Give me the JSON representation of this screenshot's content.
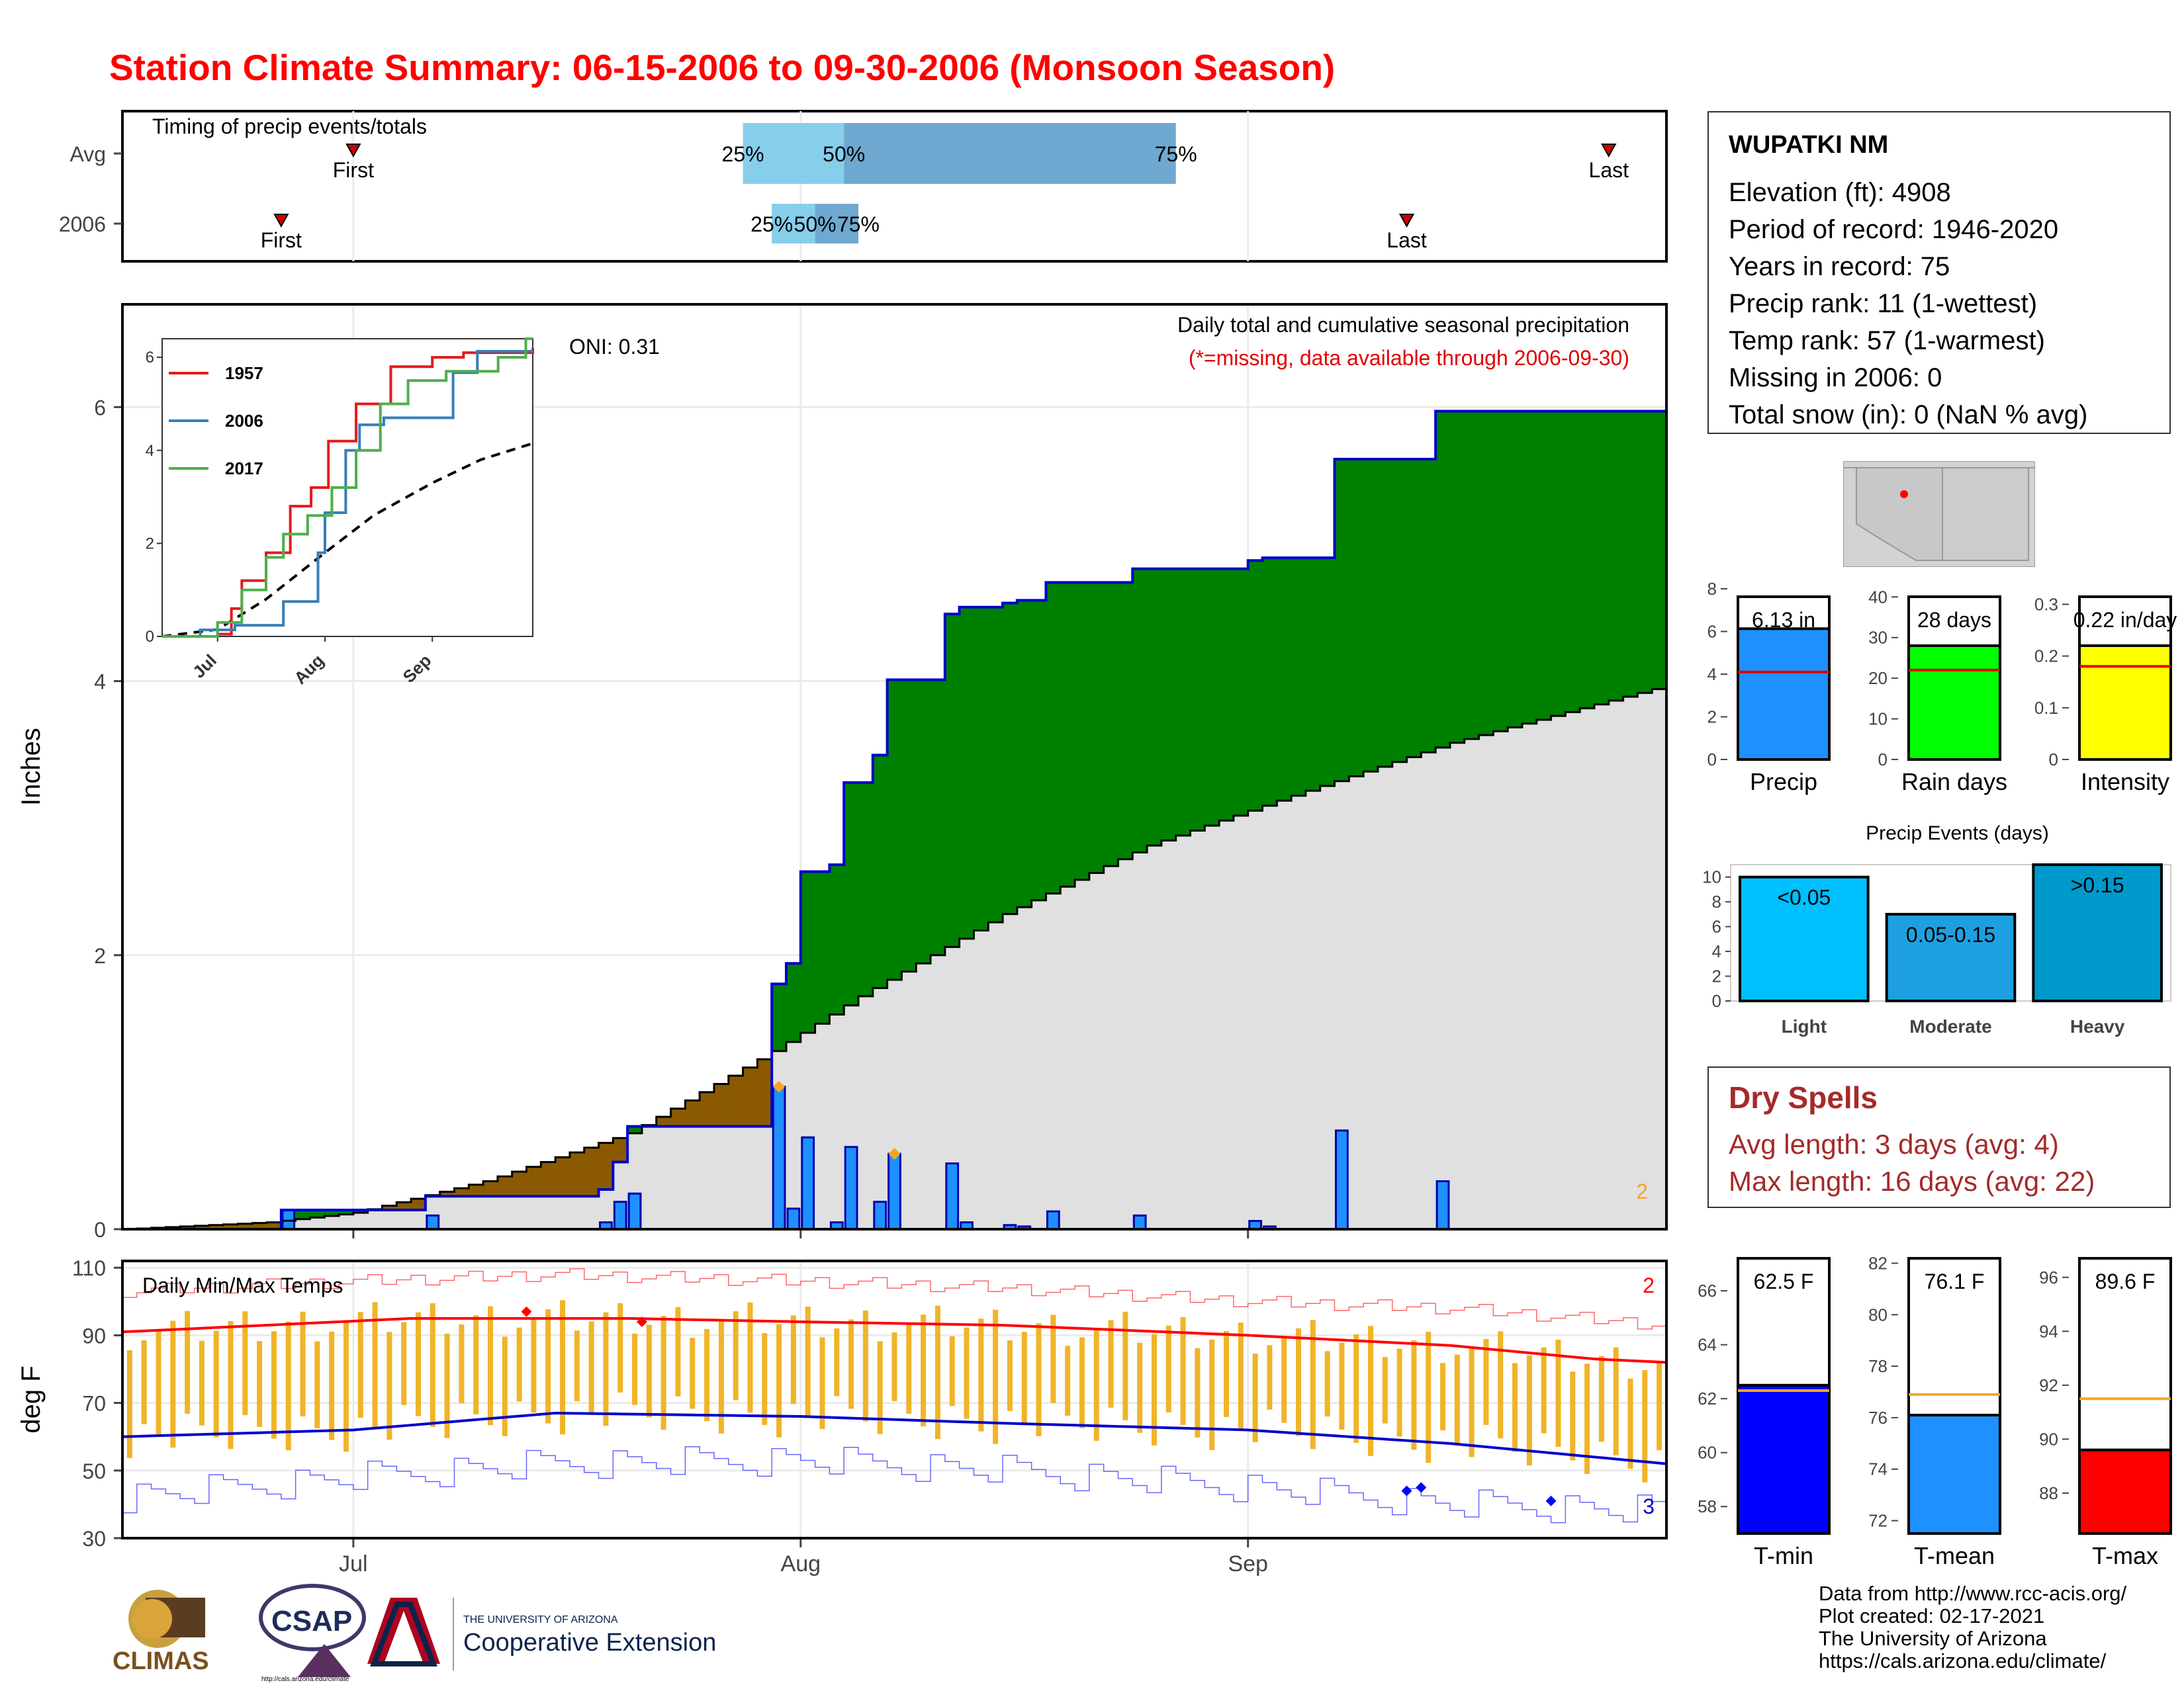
{
  "title": "Station Climate Summary: 06-15-2006 to 09-30-2006 (Monsoon Season)",
  "colors": {
    "title": "#ff0000",
    "green": "#008000",
    "brown": "#8b5a00",
    "bar_blue": "#1e90ff",
    "light_q": "#87ceeb",
    "dark_q": "#6fa8d0",
    "tmax": "#ff0000",
    "tmin": "#0000cc",
    "temp_bar": "#f0b428",
    "dry": "#a52a2a"
  },
  "timing": {
    "label": "Timing of precip events/totals",
    "rows": [
      {
        "name": "Avg",
        "first_label": "First",
        "last_label": "Last",
        "first_date": "2006-07-01",
        "last_date": "2006-09-26",
        "q25_date": "2006-07-28",
        "q50_date": "2006-08-04",
        "q75_date": "2006-08-27",
        "q25_label": "25%",
        "q50_label": "50%",
        "q75_label": "75%"
      },
      {
        "name": "2006",
        "first_label": "First",
        "last_label": "Last",
        "first_date": "2006-06-26",
        "last_date": "2006-09-12",
        "q25_date": "2006-07-30",
        "q50_date": "2006-08-02",
        "q75_date": "2006-08-05",
        "q25_label": "25%",
        "q50_label": "50%",
        "q75_label": "75%"
      }
    ]
  },
  "main_chart": {
    "ylabel": "Inches",
    "oni": "ONI: 0.31",
    "caption": "Daily total and cumulative seasonal precipitation",
    "caption2": "(*=missing, data available through 2006-09-30)",
    "corner_count": "2",
    "yticks": [
      0,
      2,
      4,
      6
    ],
    "ylim": [
      0,
      6.75
    ]
  },
  "chart_data": {
    "type": "area",
    "start_date": "2006-06-15",
    "end_date": "2006-09-30",
    "daily_precip": [
      {
        "date": "2006-06-26",
        "value": 0.14
      },
      {
        "date": "2006-07-06",
        "value": 0.1
      },
      {
        "date": "2006-07-18",
        "value": 0.05
      },
      {
        "date": "2006-07-19",
        "value": 0.2
      },
      {
        "date": "2006-07-20",
        "value": 0.26
      },
      {
        "date": "2006-07-30",
        "value": 1.04
      },
      {
        "date": "2006-07-31",
        "value": 0.15
      },
      {
        "date": "2006-08-01",
        "value": 0.67
      },
      {
        "date": "2006-08-03",
        "value": 0.05
      },
      {
        "date": "2006-08-04",
        "value": 0.6
      },
      {
        "date": "2006-08-06",
        "value": 0.2
      },
      {
        "date": "2006-08-07",
        "value": 0.55
      },
      {
        "date": "2006-08-11",
        "value": 0.48
      },
      {
        "date": "2006-08-12",
        "value": 0.05
      },
      {
        "date": "2006-08-15",
        "value": 0.03
      },
      {
        "date": "2006-08-16",
        "value": 0.02
      },
      {
        "date": "2006-08-18",
        "value": 0.13
      },
      {
        "date": "2006-08-24",
        "value": 0.1
      },
      {
        "date": "2006-09-01",
        "value": 0.06
      },
      {
        "date": "2006-09-02",
        "value": 0.02
      },
      {
        "date": "2006-09-07",
        "value": 0.72
      },
      {
        "date": "2006-09-14",
        "value": 0.35
      }
    ],
    "average_cumulative": [
      {
        "date": "2006-06-15",
        "value": 0
      },
      {
        "date": "2006-06-25",
        "value": 0.05
      },
      {
        "date": "2006-07-01",
        "value": 0.12
      },
      {
        "date": "2006-07-10",
        "value": 0.35
      },
      {
        "date": "2006-07-20",
        "value": 0.7
      },
      {
        "date": "2006-07-30",
        "value": 1.3
      },
      {
        "date": "2006-08-05",
        "value": 1.7
      },
      {
        "date": "2006-08-15",
        "value": 2.3
      },
      {
        "date": "2006-08-25",
        "value": 2.8
      },
      {
        "date": "2006-09-05",
        "value": 3.2
      },
      {
        "date": "2006-09-15",
        "value": 3.55
      },
      {
        "date": "2006-09-30",
        "value": 3.97
      }
    ],
    "missing_markers": [
      {
        "date": "2006-07-30",
        "value": 1.04
      },
      {
        "date": "2006-08-07",
        "value": 0.55
      }
    ],
    "inset": {
      "series": [
        {
          "name": "1957",
          "color": "#e41a1c",
          "points": [
            [
              "2006-06-15",
              0
            ],
            [
              "2006-07-01",
              0.05
            ],
            [
              "2006-07-05",
              0.6
            ],
            [
              "2006-07-08",
              1.2
            ],
            [
              "2006-07-15",
              1.8
            ],
            [
              "2006-07-22",
              2.8
            ],
            [
              "2006-07-28",
              3.2
            ],
            [
              "2006-08-02",
              4.2
            ],
            [
              "2006-08-10",
              5.0
            ],
            [
              "2006-08-20",
              5.8
            ],
            [
              "2006-09-01",
              6.0
            ],
            [
              "2006-09-10",
              6.1
            ],
            [
              "2006-09-30",
              6.2
            ]
          ]
        },
        {
          "name": "2006",
          "color": "#377eb8",
          "points": [
            [
              "2006-06-15",
              0
            ],
            [
              "2006-06-26",
              0.14
            ],
            [
              "2006-07-06",
              0.24
            ],
            [
              "2006-07-20",
              0.75
            ],
            [
              "2006-07-30",
              1.8
            ],
            [
              "2006-08-01",
              2.66
            ],
            [
              "2006-08-07",
              4.0
            ],
            [
              "2006-08-11",
              4.55
            ],
            [
              "2006-08-18",
              4.7
            ],
            [
              "2006-09-07",
              5.67
            ],
            [
              "2006-09-14",
              6.13
            ],
            [
              "2006-09-30",
              6.13
            ]
          ]
        },
        {
          "name": "2017",
          "color": "#4daf4a",
          "points": [
            [
              "2006-06-15",
              0
            ],
            [
              "2006-07-01",
              0.3
            ],
            [
              "2006-07-08",
              1.0
            ],
            [
              "2006-07-15",
              1.7
            ],
            [
              "2006-07-20",
              2.2
            ],
            [
              "2006-07-27",
              2.6
            ],
            [
              "2006-08-03",
              3.2
            ],
            [
              "2006-08-10",
              4.0
            ],
            [
              "2006-08-17",
              5.0
            ],
            [
              "2006-08-25",
              5.5
            ],
            [
              "2006-09-05",
              5.7
            ],
            [
              "2006-09-20",
              6.0
            ],
            [
              "2006-09-28",
              6.4
            ],
            [
              "2006-09-30",
              6.4
            ]
          ]
        }
      ],
      "average_points": [
        [
          "2006-06-15",
          0
        ],
        [
          "2006-07-01",
          0.15
        ],
        [
          "2006-07-15",
          0.8
        ],
        [
          "2006-08-01",
          1.8
        ],
        [
          "2006-08-15",
          2.6
        ],
        [
          "2006-09-01",
          3.3
        ],
        [
          "2006-09-15",
          3.8
        ],
        [
          "2006-09-30",
          4.15
        ]
      ],
      "yticks": [
        0,
        2,
        4,
        6
      ],
      "xticks": [
        {
          "date": "2006-07-01",
          "label": "Jul"
        },
        {
          "date": "2006-08-01",
          "label": "Aug"
        },
        {
          "date": "2006-09-01",
          "label": "Sep"
        }
      ]
    },
    "temps": {
      "label": "Daily Min/Max Temps",
      "ylabel": "deg F",
      "yticks": [
        30,
        50,
        70,
        90,
        110
      ],
      "ylim": [
        30,
        112
      ],
      "count_max": "2",
      "count_min": "3",
      "avg_max": [
        [
          "2006-06-15",
          91
        ],
        [
          "2006-07-05",
          95
        ],
        [
          "2006-07-20",
          95
        ],
        [
          "2006-08-01",
          94
        ],
        [
          "2006-08-15",
          93
        ],
        [
          "2006-09-01",
          90
        ],
        [
          "2006-09-15",
          87
        ],
        [
          "2006-09-25",
          83
        ],
        [
          "2006-09-30",
          82
        ]
      ],
      "avg_min": [
        [
          "2006-06-15",
          60
        ],
        [
          "2006-07-01",
          62
        ],
        [
          "2006-07-15",
          67
        ],
        [
          "2006-08-01",
          66
        ],
        [
          "2006-08-15",
          64
        ],
        [
          "2006-09-01",
          62
        ],
        [
          "2006-09-15",
          58
        ],
        [
          "2006-09-25",
          54
        ],
        [
          "2006-09-30",
          52
        ]
      ],
      "record_max": [
        [
          "2006-06-15",
          103
        ],
        [
          "2006-07-01",
          106
        ],
        [
          "2006-07-15",
          108
        ],
        [
          "2006-08-01",
          106
        ],
        [
          "2006-08-15",
          104
        ],
        [
          "2006-09-01",
          100
        ],
        [
          "2006-09-15",
          98
        ],
        [
          "2006-09-30",
          93
        ]
      ],
      "record_min": [
        [
          "2006-06-15",
          42
        ],
        [
          "2006-07-01",
          48
        ],
        [
          "2006-07-15",
          52
        ],
        [
          "2006-08-01",
          53
        ],
        [
          "2006-08-15",
          50
        ],
        [
          "2006-09-01",
          45
        ],
        [
          "2006-09-15",
          40
        ],
        [
          "2006-09-30",
          38
        ]
      ],
      "record_max_markers": [
        [
          "2006-07-13",
          97
        ],
        [
          "2006-07-21",
          94
        ]
      ],
      "record_min_markers": [
        [
          "2006-09-12",
          44
        ],
        [
          "2006-09-13",
          45
        ],
        [
          "2006-09-22",
          41
        ]
      ],
      "xticks": [
        {
          "date": "2006-07-01",
          "label": "Jul"
        },
        {
          "date": "2006-08-01",
          "label": "Aug"
        },
        {
          "date": "2006-09-01",
          "label": "Sep"
        }
      ]
    }
  },
  "station": {
    "name": "WUPATKI NM",
    "lines": [
      "Elevation (ft): 4908",
      "Period of record: 1946-2020",
      "Years in record: 75",
      "Precip rank: 11 (1-wettest)",
      "Temp rank: 57 (1-warmest)",
      "Missing in 2006: 0",
      "Total snow (in): 0 (NaN % avg)"
    ]
  },
  "summary_bars": [
    {
      "label": "Precip",
      "value_label": "6.13 in",
      "value": 6.13,
      "avg": 4.1,
      "ylim": [
        0,
        8
      ],
      "yticks": [
        0,
        2,
        4,
        6,
        8
      ],
      "color": "#1e90ff"
    },
    {
      "label": "Rain days",
      "value_label": "28 days",
      "value": 28,
      "avg": 22,
      "ylim": [
        0,
        42
      ],
      "yticks": [
        0,
        10,
        20,
        30,
        40
      ],
      "color": "#00ff00"
    },
    {
      "label": "Intensity",
      "value_label": "0.22 in/day",
      "value": 0.22,
      "avg": 0.18,
      "ylim": [
        0,
        0.33
      ],
      "yticks": [
        0.0,
        0.1,
        0.2,
        0.3
      ],
      "color": "#ffff00"
    }
  ],
  "events": {
    "title": "Precip Events (days)",
    "ylim": [
      0,
      11
    ],
    "yticks": [
      0,
      2,
      4,
      6,
      8,
      10
    ],
    "bars": [
      {
        "label": "Light",
        "range": "<0.05",
        "value": 10,
        "color": "#00bfff"
      },
      {
        "label": "Moderate",
        "range": "0.05-0.15",
        "value": 7,
        "color": "#1ea0e0"
      },
      {
        "label": "Heavy",
        "range": ">0.15",
        "value": 11,
        "color": "#0099cc"
      }
    ]
  },
  "dry_spells": {
    "title": "Dry Spells",
    "avg": "Avg length: 3 days (avg: 4)",
    "max": "Max length: 16 days (avg: 22)"
  },
  "temp_bars": [
    {
      "label": "T-min",
      "value_label": "62.5 F",
      "value": 62.5,
      "avg": 62.3,
      "ylim": [
        57,
        67.5
      ],
      "yticks": [
        58,
        60,
        62,
        64,
        66
      ],
      "color": "#0000ff"
    },
    {
      "label": "T-mean",
      "value_label": "76.1 F",
      "value": 76.1,
      "avg": 76.9,
      "ylim": [
        71.5,
        82.5
      ],
      "yticks": [
        72,
        74,
        76,
        78,
        80,
        82
      ],
      "color": "#1e90ff"
    },
    {
      "label": "T-max",
      "value_label": "89.6 F",
      "value": 89.6,
      "avg": 91.5,
      "ylim": [
        86.5,
        97
      ],
      "yticks": [
        88,
        90,
        92,
        94,
        96
      ],
      "color": "#ff0000"
    }
  ],
  "credits": [
    "Data from http://www.rcc-acis.org/",
    "Plot created: 02-17-2021",
    "The University of Arizona",
    "https://cals.arizona.edu/climate/"
  ],
  "logos": {
    "climas": "CLIMAS",
    "csap": "CSAP",
    "csap_url": "http://cals.arizona.edu/climate",
    "ua_line1": "THE UNIVERSITY OF ARIZONA",
    "ua_line2": "Cooperative Extension"
  }
}
